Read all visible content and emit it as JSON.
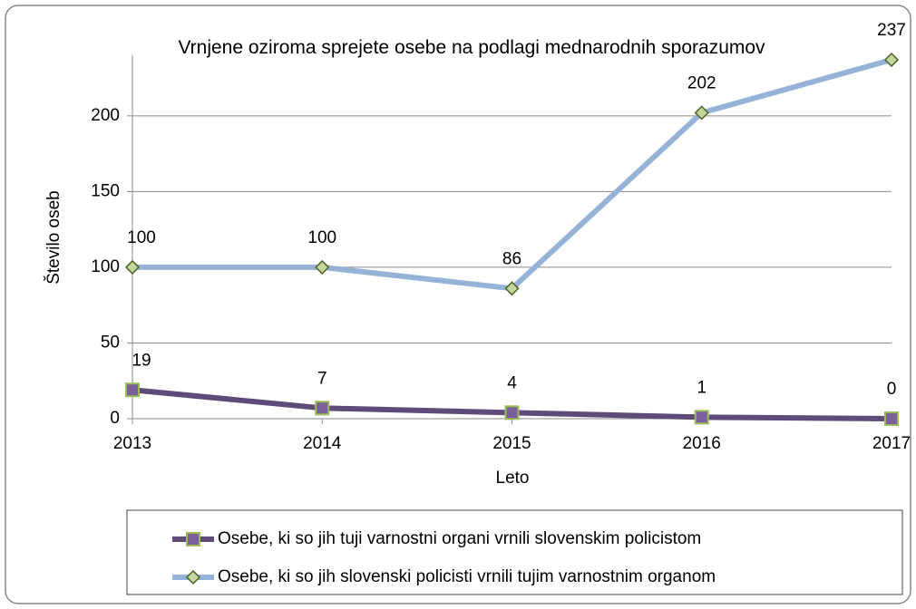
{
  "chart_data": {
    "type": "line",
    "title": "Vrnjene oziroma sprejete osebe na podlagi mednarodnih sporazumov",
    "y_label": "Število oseb",
    "x_label": "Leto",
    "categories": [
      "2013",
      "2014",
      "2015",
      "2016",
      "2017"
    ],
    "series": [
      {
        "name": "Osebe, ki so jih tuji varnostni organi vrnili slovenskim policistom",
        "color": "#5f4a7a",
        "marker": "square",
        "values": [
          19,
          7,
          4,
          1,
          0
        ]
      },
      {
        "name": "Osebe, ki so jih slovenski policisti vrnili tujim varnostnim organom",
        "color": "#95b3d7",
        "marker": "diamond",
        "values": [
          100,
          100,
          86,
          202,
          237
        ]
      }
    ],
    "ylim": [
      0,
      240
    ],
    "yticks": [
      0,
      50,
      100,
      150,
      200
    ],
    "grid": true,
    "legend": "bottom"
  }
}
